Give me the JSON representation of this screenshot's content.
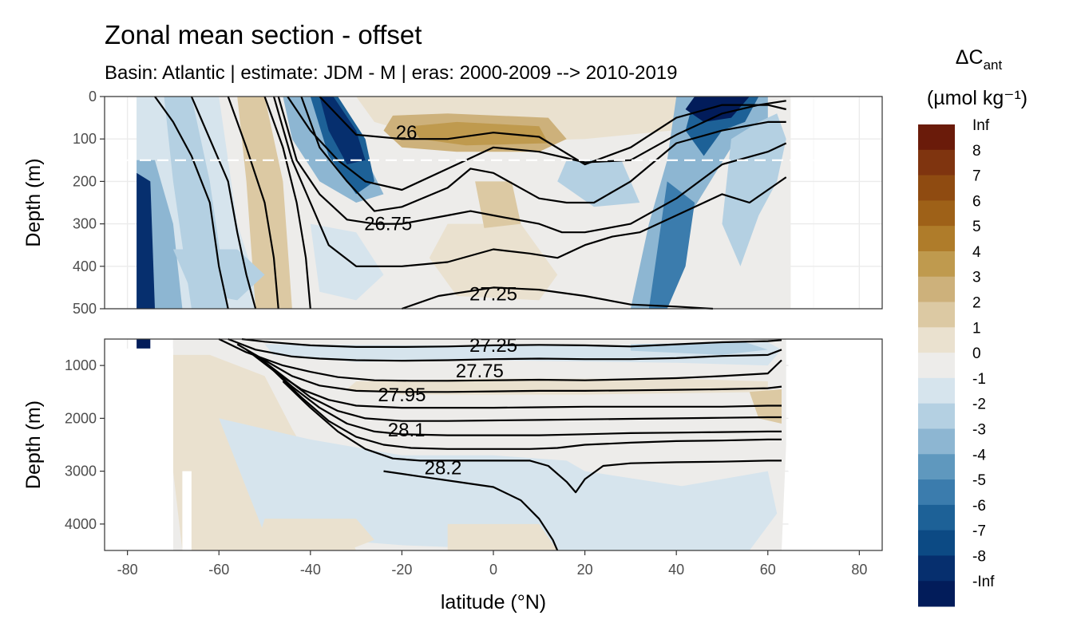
{
  "title": "Zonal mean section - offset",
  "subtitle": "Basin: Atlantic | estimate: JDM - M | eras: 2000-2009 --> 2010-2019",
  "chart_data": {
    "type": "heatmap",
    "subtype": "filled contour section with isopycnal contour lines",
    "x_axis": {
      "label": "latitude (°N)",
      "range": [
        -85,
        85
      ],
      "ticks": [
        -80,
        -60,
        -40,
        -20,
        0,
        20,
        40,
        60,
        80
      ],
      "tick_labels": [
        "-80",
        "-60",
        "-40",
        "-20",
        "0",
        "20",
        "40",
        "60",
        "80"
      ]
    },
    "panels": [
      {
        "name": "upper",
        "ylabel": "Depth (m)",
        "ylim": [
          0,
          500
        ],
        "y_reversed": true,
        "yticks": [
          0,
          100,
          200,
          300,
          400,
          500
        ],
        "ytick_labels": [
          "0",
          "100",
          "200",
          "300",
          "400",
          "500"
        ],
        "reference_line_depth": 150,
        "contour_labels": [
          {
            "text": "26",
            "lat": -19,
            "depth": 85
          },
          {
            "text": "26.75",
            "lat": -23,
            "depth": 300
          },
          {
            "text": "27.25",
            "lat": 0,
            "depth": 465
          }
        ]
      },
      {
        "name": "lower",
        "ylabel": "Depth (m)",
        "ylim": [
          500,
          4500
        ],
        "y_reversed": true,
        "yticks": [
          1000,
          2000,
          3000,
          4000
        ],
        "ytick_labels": [
          "1000",
          "2000",
          "3000",
          "4000"
        ],
        "contour_labels": [
          {
            "text": "27.25",
            "lat": 0,
            "depth": 500
          },
          {
            "text": "27.75",
            "lat": -3,
            "depth": 1100
          },
          {
            "text": "27.95",
            "lat": -20,
            "depth": 1560
          },
          {
            "text": "28.1",
            "lat": -19,
            "depth": 2220
          },
          {
            "text": "28.2",
            "lat": -11,
            "depth": 2940
          }
        ]
      }
    ],
    "isopycnals_upper": [
      {
        "lat": [
          -74,
          -70,
          -66,
          -62,
          -60,
          -58
        ],
        "depth": [
          0,
          60,
          140,
          250,
          400,
          500
        ]
      },
      {
        "lat": [
          -66,
          -62,
          -58,
          -56,
          -54,
          -52
        ],
        "depth": [
          0,
          100,
          200,
          320,
          420,
          500
        ]
      },
      {
        "lat": [
          -58,
          -54,
          -50,
          -48,
          -47
        ],
        "depth": [
          0,
          120,
          250,
          380,
          500
        ]
      },
      {
        "lat": [
          -50,
          -46,
          -43,
          -41,
          -40
        ],
        "depth": [
          0,
          120,
          250,
          380,
          500
        ]
      },
      {
        "lat": [
          -45,
          -40,
          -34,
          -28,
          -20,
          -8,
          0,
          10,
          20,
          30,
          40,
          50,
          58,
          64
        ],
        "depth": [
          0,
          80,
          150,
          200,
          220,
          160,
          120,
          130,
          155,
          150,
          90,
          40,
          20,
          10
        ]
      },
      {
        "lat": [
          -38,
          -30,
          -20,
          -10,
          0,
          10,
          20,
          30,
          40,
          50,
          60,
          64
        ],
        "depth": [
          0,
          90,
          100,
          100,
          85,
          95,
          160,
          120,
          50,
          20,
          20,
          30
        ]
      },
      {
        "lat": [
          -42,
          -38,
          -32,
          -26,
          -20,
          -10,
          -5,
          0,
          10,
          16,
          22,
          30,
          40,
          50,
          60,
          64
        ],
        "depth": [
          0,
          120,
          200,
          270,
          260,
          215,
          170,
          180,
          240,
          250,
          250,
          200,
          110,
          80,
          60,
          60
        ]
      },
      {
        "lat": [
          -47,
          -43,
          -38,
          -32,
          -26,
          -20,
          -10,
          -5,
          0,
          10,
          15,
          20,
          30,
          40,
          50,
          60,
          64
        ],
        "depth": [
          0,
          150,
          230,
          290,
          300,
          300,
          280,
          270,
          280,
          300,
          320,
          320,
          300,
          240,
          160,
          130,
          110
        ]
      },
      {
        "lat": [
          -48,
          -44,
          -40,
          -36,
          -30,
          -20,
          -10,
          0,
          8,
          14,
          20,
          26,
          32,
          40,
          50,
          56,
          64
        ],
        "depth": [
          0,
          150,
          250,
          350,
          400,
          400,
          390,
          360,
          370,
          380,
          350,
          330,
          320,
          280,
          230,
          250,
          190
        ]
      },
      {
        "lat": [
          -20,
          -12,
          0,
          10,
          20,
          30,
          40,
          48
        ],
        "depth": [
          500,
          470,
          450,
          455,
          470,
          490,
          495,
          500
        ]
      }
    ],
    "isopycnals_lower": [
      {
        "lat": [
          -55,
          -50,
          -40,
          -30,
          -20,
          -10,
          0,
          10,
          20,
          30,
          40,
          50,
          60,
          63
        ],
        "depth": [
          500,
          550,
          620,
          650,
          650,
          640,
          620,
          610,
          620,
          640,
          600,
          560,
          540,
          520
        ]
      },
      {
        "lat": [
          -58,
          -52,
          -44,
          -38,
          -30,
          -20,
          -10,
          0,
          10,
          20,
          30,
          40,
          50,
          60,
          63
        ],
        "depth": [
          500,
          700,
          830,
          870,
          900,
          910,
          900,
          880,
          870,
          880,
          880,
          860,
          820,
          800,
          700
        ]
      },
      {
        "lat": [
          -60,
          -54,
          -46,
          -40,
          -34,
          -26,
          -18,
          -10,
          0,
          10,
          20,
          30,
          40,
          50,
          60,
          63
        ],
        "depth": [
          500,
          750,
          1000,
          1120,
          1220,
          1280,
          1290,
          1290,
          1280,
          1270,
          1280,
          1260,
          1240,
          1200,
          1150,
          900
        ]
      },
      {
        "lat": [
          -56,
          -50,
          -44,
          -38,
          -30,
          -20,
          -10,
          0,
          10,
          20,
          30,
          40,
          50,
          60,
          63
        ],
        "depth": [
          600,
          900,
          1200,
          1380,
          1480,
          1500,
          1500,
          1490,
          1480,
          1480,
          1470,
          1460,
          1450,
          1430,
          1400
        ]
      },
      {
        "lat": [
          -54,
          -48,
          -42,
          -36,
          -30,
          -20,
          -10,
          0,
          10,
          20,
          30,
          40,
          50,
          60,
          63
        ],
        "depth": [
          700,
          1100,
          1450,
          1650,
          1760,
          1800,
          1800,
          1800,
          1790,
          1780,
          1780,
          1780,
          1780,
          1760,
          1760
        ]
      },
      {
        "lat": [
          -52,
          -46,
          -40,
          -34,
          -28,
          -20,
          -10,
          0,
          10,
          20,
          30,
          40,
          50,
          60,
          63
        ],
        "depth": [
          800,
          1200,
          1600,
          1860,
          2000,
          2050,
          2050,
          2040,
          2030,
          2020,
          2010,
          2000,
          1990,
          1980,
          1980
        ]
      },
      {
        "lat": [
          -50,
          -44,
          -38,
          -32,
          -26,
          -20,
          -10,
          0,
          10,
          20,
          30,
          40,
          50,
          60,
          63
        ],
        "depth": [
          950,
          1400,
          1800,
          2100,
          2250,
          2300,
          2320,
          2320,
          2320,
          2300,
          2280,
          2270,
          2260,
          2250,
          2250
        ]
      },
      {
        "lat": [
          -48,
          -42,
          -36,
          -30,
          -24,
          -18,
          -10,
          0,
          8,
          14,
          20,
          30,
          40,
          50,
          60,
          63
        ],
        "depth": [
          1100,
          1600,
          2050,
          2350,
          2500,
          2560,
          2580,
          2580,
          2580,
          2560,
          2500,
          2460,
          2430,
          2420,
          2400,
          2400
        ]
      },
      {
        "lat": [
          -46,
          -40,
          -34,
          -28,
          -22,
          -16,
          -8,
          0,
          8,
          12,
          16,
          18,
          20,
          24,
          30,
          40,
          50,
          60,
          63
        ],
        "depth": [
          1300,
          1800,
          2250,
          2580,
          2760,
          2800,
          2800,
          2800,
          2800,
          2900,
          3200,
          3400,
          3150,
          2900,
          2850,
          2830,
          2820,
          2800,
          2800
        ]
      },
      {
        "lat": [
          -24,
          -16,
          -8,
          0,
          6,
          10,
          13,
          14
        ],
        "depth": [
          3000,
          3100,
          3200,
          3300,
          3550,
          3900,
          4300,
          4500
        ]
      }
    ],
    "legend": {
      "title": "ΔCant (µmol kg⁻¹)",
      "title_main": "ΔC",
      "title_sub": "ant",
      "title_units": "(µmol kg⁻¹)",
      "labels": [
        "Inf",
        "8",
        "7",
        "6",
        "5",
        "4",
        "3",
        "2",
        "1",
        "0",
        "-1",
        "-2",
        "-3",
        "-4",
        "-5",
        "-6",
        "-7",
        "-8",
        "-Inf"
      ],
      "colors": [
        "#6a1b0a",
        "#7f340f",
        "#8f4b11",
        "#9e6118",
        "#af7c2a",
        "#bf9a4e",
        "#cdb17b",
        "#dcc9a3",
        "#eae1cf",
        "#edecea",
        "#d6e4ed",
        "#b4d0e2",
        "#8db6d2",
        "#5f98be",
        "#3b7cad",
        "#1d6197",
        "#0c4a84",
        "#062f6e",
        "#021c5a"
      ]
    }
  }
}
